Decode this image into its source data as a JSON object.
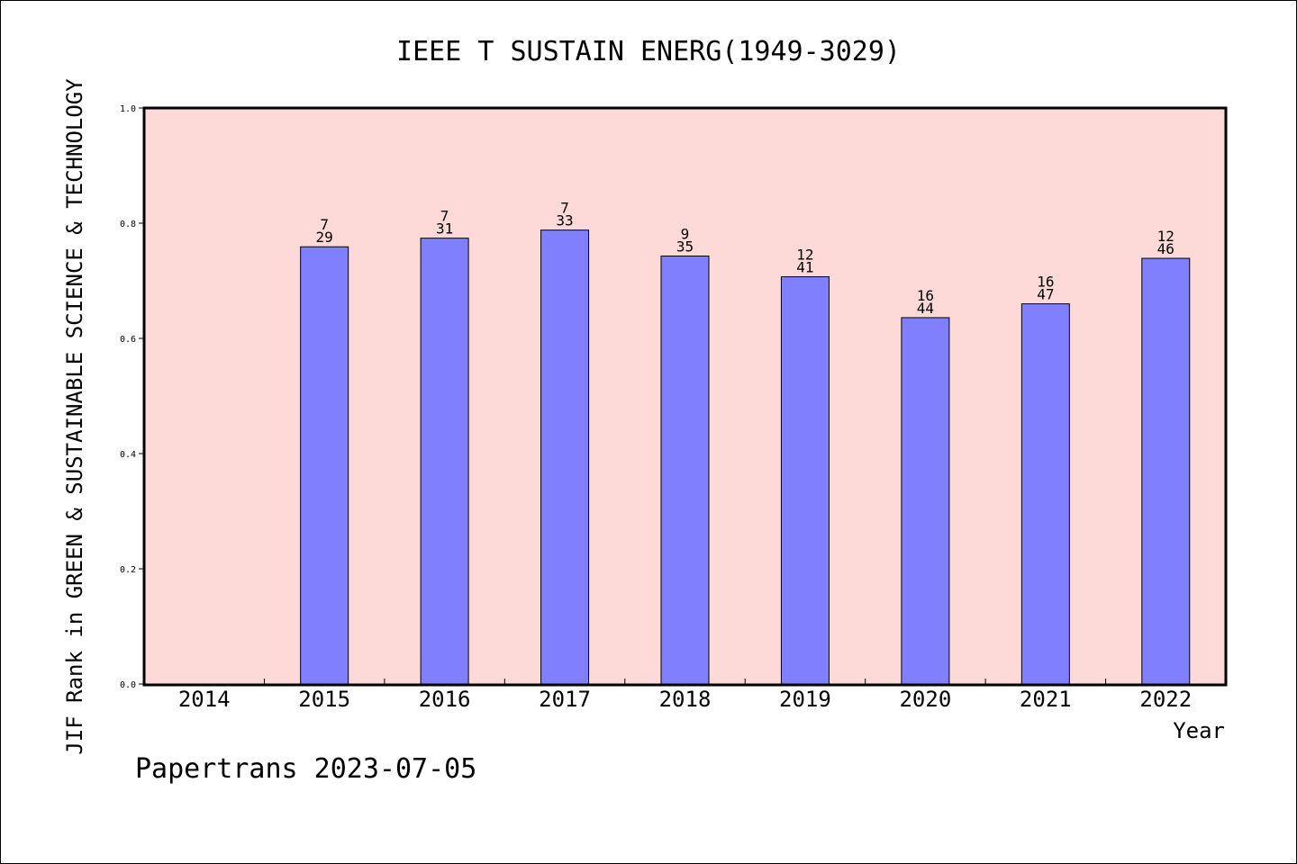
{
  "chart_data": {
    "type": "bar",
    "title": "IEEE T SUSTAIN ENERG(1949-3029)",
    "xlabel": "Year",
    "ylabel": "JIF Rank in GREEN & SUSTAINABLE SCIENCE & TECHNOLOGY",
    "ylim": [
      0,
      1.0
    ],
    "yticks": [
      "0.0",
      "0.2",
      "0.4",
      "0.6",
      "0.8",
      "1.0"
    ],
    "categories": [
      "2014",
      "2015",
      "2016",
      "2017",
      "2018",
      "2019",
      "2020",
      "2021",
      "2022"
    ],
    "values": [
      null,
      0.759,
      0.774,
      0.788,
      0.743,
      0.707,
      0.636,
      0.66,
      0.739
    ],
    "rank": [
      null,
      "7",
      "7",
      "7",
      "9",
      "12",
      "16",
      "16",
      "12"
    ],
    "total": [
      null,
      "29",
      "31",
      "33",
      "35",
      "41",
      "44",
      "47",
      "46"
    ],
    "grid": false,
    "colors": {
      "plot_bg": "#fddad8",
      "bar": "#8080ff",
      "bar_edge": "#000000"
    }
  },
  "footer": {
    "credit": "Papertrans 2023-07-05"
  }
}
